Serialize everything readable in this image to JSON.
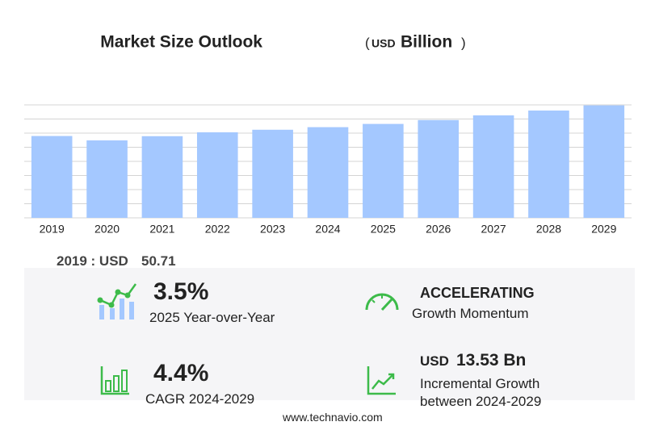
{
  "chart_data": {
    "type": "bar",
    "title": "Market Size Outlook",
    "unit_parts": [
      "(",
      "USD",
      "Billion",
      ")"
    ],
    "categories": [
      "2019",
      "2020",
      "2021",
      "2022",
      "2023",
      "2024",
      "2025",
      "2026",
      "2027",
      "2028",
      "2029"
    ],
    "values": [
      50.71,
      48.0,
      50.6,
      53.0,
      54.6,
      56.2,
      58.2,
      60.6,
      63.5,
      66.5,
      69.7
    ],
    "color": "#a4c8ff",
    "ylim": [
      0,
      70
    ],
    "yticks": [
      0,
      8.75,
      17.5,
      26.25,
      35,
      43.75,
      52.5,
      61.25,
      70
    ],
    "grid": true
  },
  "summary": {
    "base_label": "2019 : USD",
    "cards": [
      {
        "stat": "3.5%",
        "label": "2025 Year-over-Year"
      },
      {
        "stat": "ACCELERATING",
        "label": "Growth Momentum"
      },
      {
        "stat": "4.4%",
        "label": "CAGR 2024-2029"
      },
      {
        "stat_prefix": "USD",
        "stat": "13.53 Bn",
        "label": "Incremental Growth",
        "label2": "between 2024-2029"
      }
    ]
  },
  "footer": "www.technavio.com"
}
